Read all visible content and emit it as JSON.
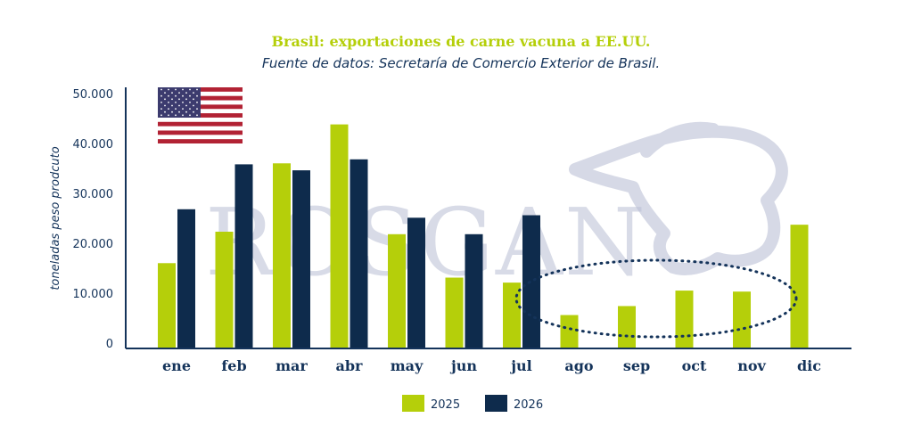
{
  "chart_data": {
    "type": "bar",
    "title": "Brasil: exportaciones de carne vacuna a EE.UU.",
    "subtitle": "Fuente de datos: Secretaría de Comercio Exterior de Brasil.",
    "ylabel": "toneladas peso prodcuto",
    "xlabel": "",
    "ylim": [
      0,
      50000
    ],
    "yticks": [
      0,
      10000,
      20000,
      30000,
      40000,
      50000
    ],
    "ytick_labels": [
      "0",
      "10.000",
      "20.000",
      "30.000",
      "40.000",
      "50.000"
    ],
    "categories": [
      "ene",
      "feb",
      "mar",
      "abr",
      "may",
      "jun",
      "jul",
      "ago",
      "sep",
      "oct",
      "nov",
      "dic"
    ],
    "series": [
      {
        "name": "2025",
        "color": "#b5cf0a",
        "values": [
          16200,
          22500,
          36200,
          44000,
          22000,
          13300,
          12300,
          5800,
          7600,
          10700,
          10500,
          23900
        ]
      },
      {
        "name": "2026",
        "color": "#0e2b4c",
        "values": [
          27000,
          36000,
          34800,
          37000,
          25300,
          22000,
          25800,
          null,
          null,
          null,
          null,
          null
        ]
      }
    ],
    "grid": false,
    "legend_position": "bottom-center",
    "annotations": [
      {
        "type": "dotted-ellipse",
        "highlight_categories": [
          "jul",
          "ago",
          "sep",
          "oct",
          "nov",
          "dic"
        ]
      },
      {
        "type": "flag",
        "icon": "us-flag-icon"
      }
    ],
    "watermark": "ROSGAN",
    "axis_color": "#14335a"
  }
}
